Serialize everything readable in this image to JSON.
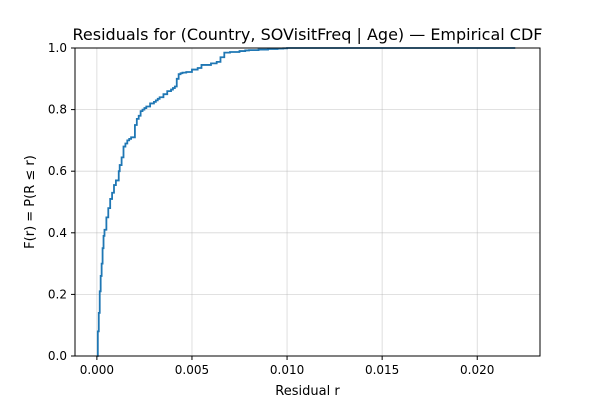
{
  "chart_data": {
    "type": "line",
    "title": "Residuals for (Country, SOVisitFreq | Age) — Empirical CDF",
    "xlabel": "Residual r",
    "ylabel": "F(r) = P(R ≤ r)",
    "xlim": [
      -0.00115,
      0.0233
    ],
    "ylim": [
      0.0,
      1.0
    ],
    "x_ticks": [
      0.0,
      0.005,
      0.01,
      0.015,
      0.02
    ],
    "x_tick_labels": [
      "0.000",
      "0.005",
      "0.010",
      "0.015",
      "0.020"
    ],
    "y_ticks": [
      0.0,
      0.2,
      0.4,
      0.6,
      0.8,
      1.0
    ],
    "y_tick_labels": [
      "0.0",
      "0.2",
      "0.4",
      "0.6",
      "0.8",
      "1.0"
    ],
    "grid": true,
    "line_color": "#1f77b4",
    "series": [
      {
        "x": [
          0.0,
          5e-05,
          0.0001,
          0.00015,
          0.0002,
          0.00025,
          0.0003,
          0.00035,
          0.0004,
          0.0005,
          0.0006,
          0.0007,
          0.0008,
          0.0009,
          0.001,
          0.00115,
          0.0012,
          0.0013,
          0.0014,
          0.0015,
          0.0016,
          0.0017,
          0.0018,
          0.002,
          0.0021,
          0.0022,
          0.0023,
          0.0024,
          0.0025,
          0.0026,
          0.0028,
          0.003,
          0.0031,
          0.0032,
          0.0033,
          0.0035,
          0.0037,
          0.0039,
          0.004,
          0.0041,
          0.0042,
          0.0043,
          0.0044,
          0.0045,
          0.0047,
          0.005,
          0.0053,
          0.0055,
          0.006,
          0.0063,
          0.0065,
          0.0067,
          0.007,
          0.0075,
          0.0078,
          0.008,
          0.0085,
          0.009,
          0.0095,
          0.0098,
          0.01,
          0.015,
          0.02,
          0.022
        ],
        "y": [
          0.0,
          0.08,
          0.14,
          0.21,
          0.26,
          0.3,
          0.35,
          0.39,
          0.41,
          0.45,
          0.48,
          0.51,
          0.53,
          0.555,
          0.57,
          0.6,
          0.62,
          0.645,
          0.68,
          0.69,
          0.7,
          0.705,
          0.71,
          0.75,
          0.77,
          0.78,
          0.795,
          0.8,
          0.805,
          0.81,
          0.82,
          0.825,
          0.83,
          0.835,
          0.84,
          0.85,
          0.86,
          0.865,
          0.87,
          0.875,
          0.9,
          0.915,
          0.918,
          0.92,
          0.922,
          0.93,
          0.935,
          0.945,
          0.95,
          0.955,
          0.97,
          0.985,
          0.987,
          0.99,
          0.992,
          0.993,
          0.995,
          0.997,
          0.998,
          0.999,
          1.0,
          1.0,
          1.0,
          1.0
        ]
      }
    ]
  }
}
